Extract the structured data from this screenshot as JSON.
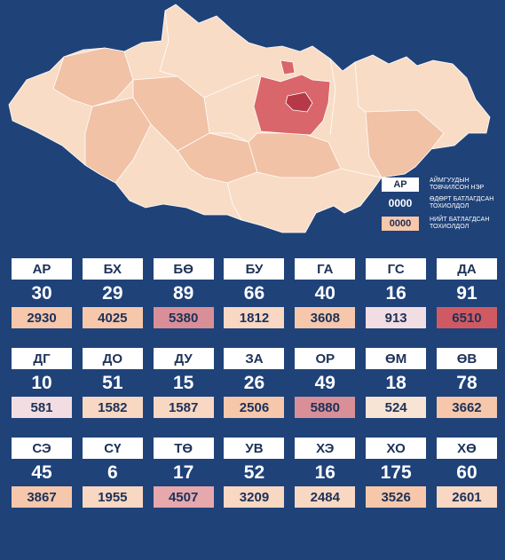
{
  "legend": {
    "code_sample": "АР",
    "code_caption": "АЙМГУУДЫН\nТОВЧИЛСОН НЭР",
    "daily_sample": "0000",
    "daily_caption": "ӨДӨРТ БАТЛАГДСАН\nТОХИОЛДОЛ",
    "total_sample": "0000",
    "total_caption": "НИЙТ БАТЛАГДСАН\nТОХИОЛДОЛ"
  },
  "colors": {
    "background": "#1f4279",
    "map_base": "#f8dcc6",
    "map_medium": "#f1c2a6",
    "map_hot": "#d9666b",
    "map_darkest": "#b63947"
  },
  "provinces": [
    {
      "code": "АР",
      "daily": "30",
      "total": "2930",
      "color": "#f6c7ab"
    },
    {
      "code": "БХ",
      "daily": "29",
      "total": "4025",
      "color": "#f6c7ab"
    },
    {
      "code": "БӨ",
      "daily": "89",
      "total": "5380",
      "color": "#d98f97"
    },
    {
      "code": "БУ",
      "daily": "66",
      "total": "1812",
      "color": "#f8d7c3"
    },
    {
      "code": "ГА",
      "daily": "40",
      "total": "3608",
      "color": "#f6c7ab"
    },
    {
      "code": "ГС",
      "daily": "16",
      "total": "913",
      "color": "#f2dde2"
    },
    {
      "code": "ДА",
      "daily": "91",
      "total": "6510",
      "color": "#d05a62"
    },
    {
      "code": "ДГ",
      "daily": "10",
      "total": "581",
      "color": "#f2dde2"
    },
    {
      "code": "ДО",
      "daily": "51",
      "total": "1582",
      "color": "#f8d7c3"
    },
    {
      "code": "ДУ",
      "daily": "15",
      "total": "1587",
      "color": "#f8d7c3"
    },
    {
      "code": "ЗА",
      "daily": "26",
      "total": "2506",
      "color": "#f6c7ab"
    },
    {
      "code": "ОР",
      "daily": "49",
      "total": "5880",
      "color": "#d98f97"
    },
    {
      "code": "ӨМ",
      "daily": "18",
      "total": "524",
      "color": "#f8e4d5"
    },
    {
      "code": "ӨВ",
      "daily": "78",
      "total": "3662",
      "color": "#f6c7ab"
    },
    {
      "code": "СЭ",
      "daily": "45",
      "total": "3867",
      "color": "#f6c7ab"
    },
    {
      "code": "СҮ",
      "daily": "6",
      "total": "1955",
      "color": "#f8d7c3"
    },
    {
      "code": "ТӨ",
      "daily": "17",
      "total": "4507",
      "color": "#e6a8ad"
    },
    {
      "code": "УВ",
      "daily": "52",
      "total": "3209",
      "color": "#f8d7c3"
    },
    {
      "code": "ХЭ",
      "daily": "16",
      "total": "2484",
      "color": "#f8d7c3"
    },
    {
      "code": "ХО",
      "daily": "175",
      "total": "3526",
      "color": "#f6c7ab"
    },
    {
      "code": "ХӨ",
      "daily": "60",
      "total": "2601",
      "color": "#f8d7c3"
    }
  ]
}
